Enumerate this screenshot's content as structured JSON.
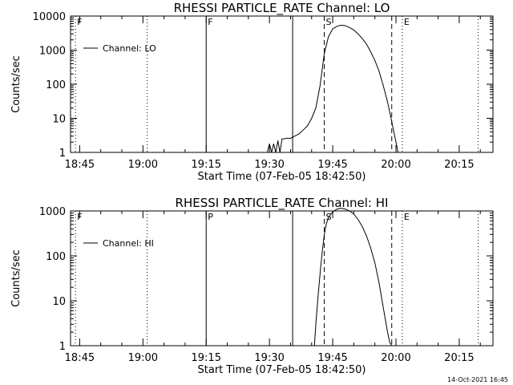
{
  "chart_data": [
    {
      "type": "line",
      "title": "RHESSI PARTICLE_RATE Channel: LO",
      "xlabel": "Start Time (07-Feb-05 18:42:50)",
      "ylabel": "Counts/sec",
      "yscale": "log",
      "ylim": [
        1,
        10000
      ],
      "xlim": [
        "18:42:50",
        "20:23:00"
      ],
      "x_ticks": [
        "18:45",
        "19:00",
        "19:15",
        "19:30",
        "19:45",
        "20:00",
        "20:15"
      ],
      "y_ticks": [
        "1",
        "10",
        "100",
        "1000",
        "10000"
      ],
      "legend": {
        "label": "Channel: LO",
        "position": "top-left"
      },
      "markers": [
        {
          "label": "F",
          "time": "18:44:00",
          "style": "dotted"
        },
        {
          "label": "",
          "time": "19:01:00",
          "style": "dotted"
        },
        {
          "label": "F",
          "time": "19:15:00",
          "style": "solid"
        },
        {
          "label": "",
          "time": "19:35:30",
          "style": "solid"
        },
        {
          "label": "S",
          "time": "19:43:00",
          "style": "dashed"
        },
        {
          "label": "",
          "time": "19:59:00",
          "style": "dashed"
        },
        {
          "label": "E",
          "time": "20:01:30",
          "style": "dotted"
        },
        {
          "label": "",
          "time": "20:19:30",
          "style": "dotted"
        }
      ],
      "series": [
        {
          "name": "Channel: LO",
          "x": [
            "19:29:30",
            "19:30:00",
            "19:30:30",
            "19:31:00",
            "19:31:30",
            "19:32:00",
            "19:32:30",
            "19:33:00",
            "19:33:30",
            "19:34:00",
            "19:34:30",
            "19:35:00",
            "19:35:30",
            "19:36:00",
            "19:37:00",
            "19:38:00",
            "19:39:00",
            "19:40:00",
            "19:41:00",
            "19:42:00",
            "19:43:00",
            "19:44:00",
            "19:45:00",
            "19:46:00",
            "19:47:00",
            "19:48:00",
            "19:49:00",
            "19:50:00",
            "19:51:00",
            "19:52:00",
            "19:53:00",
            "19:54:00",
            "19:55:00",
            "19:56:00",
            "19:57:00",
            "19:58:00",
            "19:59:00",
            "20:00:00",
            "20:00:30"
          ],
          "values": [
            1,
            1.8,
            1,
            1.8,
            1,
            2.2,
            1,
            2.5,
            2.5,
            2.6,
            2.6,
            2.6,
            2.8,
            3,
            3.5,
            4.5,
            6,
            10,
            20,
            90,
            800,
            2500,
            4200,
            5000,
            5400,
            5200,
            4600,
            3900,
            3000,
            2200,
            1500,
            900,
            500,
            240,
            90,
            30,
            8,
            2,
            1
          ]
        }
      ]
    },
    {
      "type": "line",
      "title": "RHESSI PARTICLE_RATE Channel: HI",
      "xlabel": "Start Time (07-Feb-05 18:42:50)",
      "ylabel": "Counts/sec",
      "yscale": "log",
      "ylim": [
        1,
        1000
      ],
      "xlim": [
        "18:42:50",
        "20:23:00"
      ],
      "x_ticks": [
        "18:45",
        "19:00",
        "19:15",
        "19:30",
        "19:45",
        "20:00",
        "20:15"
      ],
      "y_ticks": [
        "1",
        "10",
        "100",
        "1000"
      ],
      "legend": {
        "label": "Channel: HI",
        "position": "top-left"
      },
      "markers": [
        {
          "label": "F",
          "time": "18:44:00",
          "style": "dotted"
        },
        {
          "label": "",
          "time": "19:01:00",
          "style": "dotted"
        },
        {
          "label": "P",
          "time": "19:15:00",
          "style": "solid"
        },
        {
          "label": "",
          "time": "19:35:30",
          "style": "solid"
        },
        {
          "label": "S",
          "time": "19:43:00",
          "style": "dashed"
        },
        {
          "label": "",
          "time": "19:59:00",
          "style": "dashed"
        },
        {
          "label": "E",
          "time": "20:01:30",
          "style": "dotted"
        },
        {
          "label": "",
          "time": "20:19:30",
          "style": "dotted"
        }
      ],
      "series": [
        {
          "name": "Channel: HI",
          "x": [
            "19:40:40",
            "19:41:00",
            "19:41:30",
            "19:42:00",
            "19:42:30",
            "19:43:00",
            "19:43:30",
            "19:44:00",
            "19:45:00",
            "19:46:00",
            "19:47:00",
            "19:48:00",
            "19:49:00",
            "19:50:00",
            "19:51:00",
            "19:52:00",
            "19:53:00",
            "19:54:00",
            "19:55:00",
            "19:56:00",
            "19:57:00",
            "19:58:00",
            "19:58:30",
            "19:59:00"
          ],
          "values": [
            1,
            3,
            12,
            40,
            120,
            300,
            520,
            720,
            950,
            1100,
            1150,
            1100,
            1000,
            850,
            650,
            450,
            280,
            150,
            70,
            25,
            7,
            2,
            1.2,
            1
          ]
        }
      ]
    }
  ],
  "footer": {
    "timestamp": "14-Oct-2021 16:45"
  }
}
